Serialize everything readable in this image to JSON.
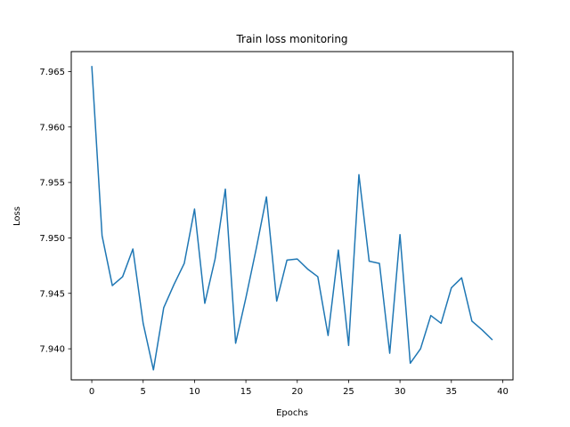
{
  "chart_data": {
    "type": "line",
    "title": "Train loss monitoring",
    "xlabel": "Epochs",
    "ylabel": "Loss",
    "xlim": [
      -2,
      41
    ],
    "ylim": [
      7.9372,
      7.9668
    ],
    "xticks": [
      0,
      5,
      10,
      15,
      20,
      25,
      30,
      35,
      40
    ],
    "xtick_labels": [
      "0",
      "5",
      "10",
      "15",
      "20",
      "25",
      "30",
      "35",
      "40"
    ],
    "yticks": [
      7.94,
      7.945,
      7.95,
      7.955,
      7.96,
      7.965
    ],
    "ytick_labels": [
      "7.940",
      "7.945",
      "7.950",
      "7.955",
      "7.960",
      "7.965"
    ],
    "grid": false,
    "series": [
      {
        "color": "#1f77b4",
        "x": [
          0,
          1,
          2,
          3,
          4,
          5,
          6,
          7,
          8,
          9,
          10,
          11,
          12,
          13,
          14,
          15,
          16,
          17,
          18,
          19,
          20,
          21,
          22,
          23,
          24,
          25,
          26,
          27,
          28,
          29,
          30,
          31,
          32,
          33,
          34,
          35,
          36,
          37,
          38,
          39
        ],
        "values": [
          7.9655,
          7.9502,
          7.9457,
          7.9465,
          7.949,
          7.9423,
          7.9381,
          7.9437,
          7.9458,
          7.9477,
          7.9526,
          7.9441,
          7.9481,
          7.9544,
          7.9405,
          7.9446,
          7.949,
          7.9537,
          7.9443,
          7.948,
          7.9481,
          7.9472,
          7.9465,
          7.9412,
          7.9489,
          7.9403,
          7.9557,
          7.9479,
          7.9477,
          7.9396,
          7.9503,
          7.9387,
          7.94,
          7.943,
          7.9423,
          7.9455,
          7.9464,
          7.9425,
          7.9417,
          7.9408
        ]
      }
    ]
  }
}
